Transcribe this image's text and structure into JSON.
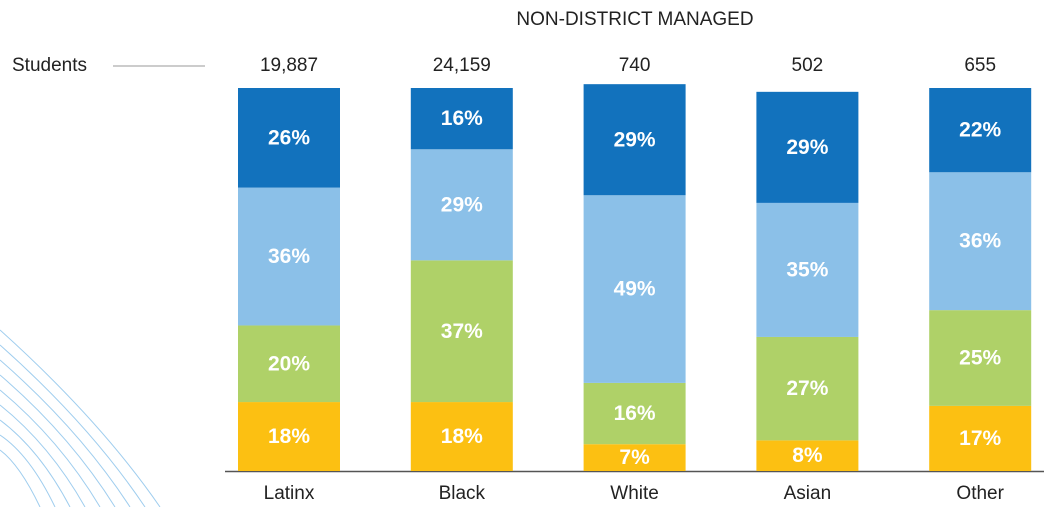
{
  "chart_data": {
    "type": "stacked_bar",
    "title": "NON-DISTRICT MANAGED",
    "categories": [
      "Latinx",
      "Black",
      "White",
      "Asian",
      "Other"
    ],
    "students": {
      "label": "Students",
      "values": [
        19887,
        24159,
        740,
        502,
        655
      ],
      "value_labels": [
        "19,887",
        "24,159",
        "740",
        "502",
        "655"
      ]
    },
    "ylim": [
      0,
      100
    ],
    "series": [
      {
        "color": "#fcc012",
        "values": [
          18,
          18,
          7,
          8,
          17
        ],
        "value_labels": [
          "18%",
          "18%",
          "7%",
          "8%",
          "17%"
        ]
      },
      {
        "color": "#afd168",
        "values": [
          20,
          37,
          16,
          27,
          25
        ],
        "value_labels": [
          "20%",
          "37%",
          "16%",
          "27%",
          "25%"
        ]
      },
      {
        "color": "#8bc0e8",
        "values": [
          36,
          29,
          49,
          35,
          36
        ],
        "value_labels": [
          "36%",
          "29%",
          "49%",
          "35%",
          "36%"
        ]
      },
      {
        "color": "#1272bd",
        "values": [
          26,
          16,
          29,
          29,
          22
        ],
        "value_labels": [
          "26%",
          "16%",
          "29%",
          "29%",
          "22%"
        ]
      }
    ]
  }
}
